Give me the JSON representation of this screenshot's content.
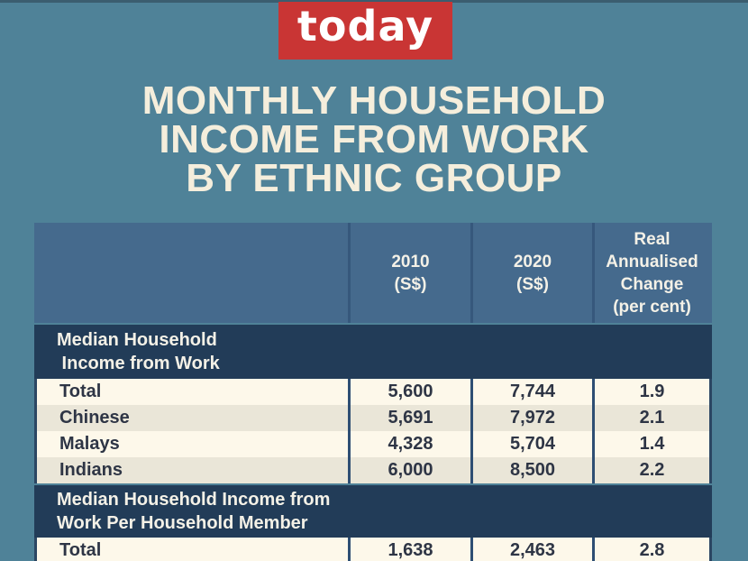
{
  "chart_data": {
    "type": "table",
    "title": "MONTHLY HOUSEHOLD INCOME FROM WORK BY ETHNIC GROUP",
    "columns": [
      "2010 (S$)",
      "2020 (S$)",
      "Real Annualised Change (per cent)"
    ],
    "sections": [
      {
        "heading": "Median Household Income from Work",
        "rows": [
          {
            "group": "Total",
            "income_2010": 5600,
            "income_2020": 7744,
            "real_annualised_change_pct": 1.9
          },
          {
            "group": "Chinese",
            "income_2010": 5691,
            "income_2020": 7972,
            "real_annualised_change_pct": 2.1
          },
          {
            "group": "Malays",
            "income_2010": 4328,
            "income_2020": 5704,
            "real_annualised_change_pct": 1.4
          },
          {
            "group": "Indians",
            "income_2010": 6000,
            "income_2020": 8500,
            "real_annualised_change_pct": 2.2
          }
        ]
      },
      {
        "heading": "Median Household Income from Work Per Household Member",
        "rows": [
          {
            "group": "Total",
            "income_2010": 1638,
            "income_2020": 2463,
            "real_annualised_change_pct": 2.8
          }
        ]
      }
    ]
  },
  "brand": {
    "logo_text": "today"
  },
  "title_lines": [
    "MONTHLY HOUSEHOLD",
    "INCOME FROM WORK",
    "BY ETHNIC GROUP"
  ],
  "table": {
    "header": {
      "col_group": "",
      "col_2010": "2010\n(S$)",
      "col_2020": "2020\n(S$)",
      "col_change": "Real\nAnnualised\nChange\n(per cent)"
    },
    "sections": [
      {
        "heading": "Median Household\n Income from Work",
        "rows": [
          {
            "label": "Total",
            "y2010": "5,600",
            "y2020": "7,744",
            "change": "1.9"
          },
          {
            "label": "Chinese",
            "y2010": "5,691",
            "y2020": "7,972",
            "change": "2.1"
          },
          {
            "label": "Malays",
            "y2010": "4,328",
            "y2020": "5,704",
            "change": "1.4"
          },
          {
            "label": "Indians",
            "y2010": "6,000",
            "y2020": "8,500",
            "change": "2.2"
          }
        ]
      },
      {
        "heading": "Median Household Income from\nWork Per Household Member",
        "rows": [
          {
            "label": "Total",
            "y2010": "1,638",
            "y2020": "2,463",
            "change": "2.8"
          }
        ]
      }
    ]
  },
  "colors": {
    "background_teal": "#4F8298",
    "brand_red": "#C93534",
    "header_blue": "#456A8D",
    "section_navy": "#223C58",
    "row_cream": "#FDF8EA",
    "row_beige": "#EAE6D8",
    "title_cream": "#F5EEDC",
    "data_text": "#2E3545"
  }
}
